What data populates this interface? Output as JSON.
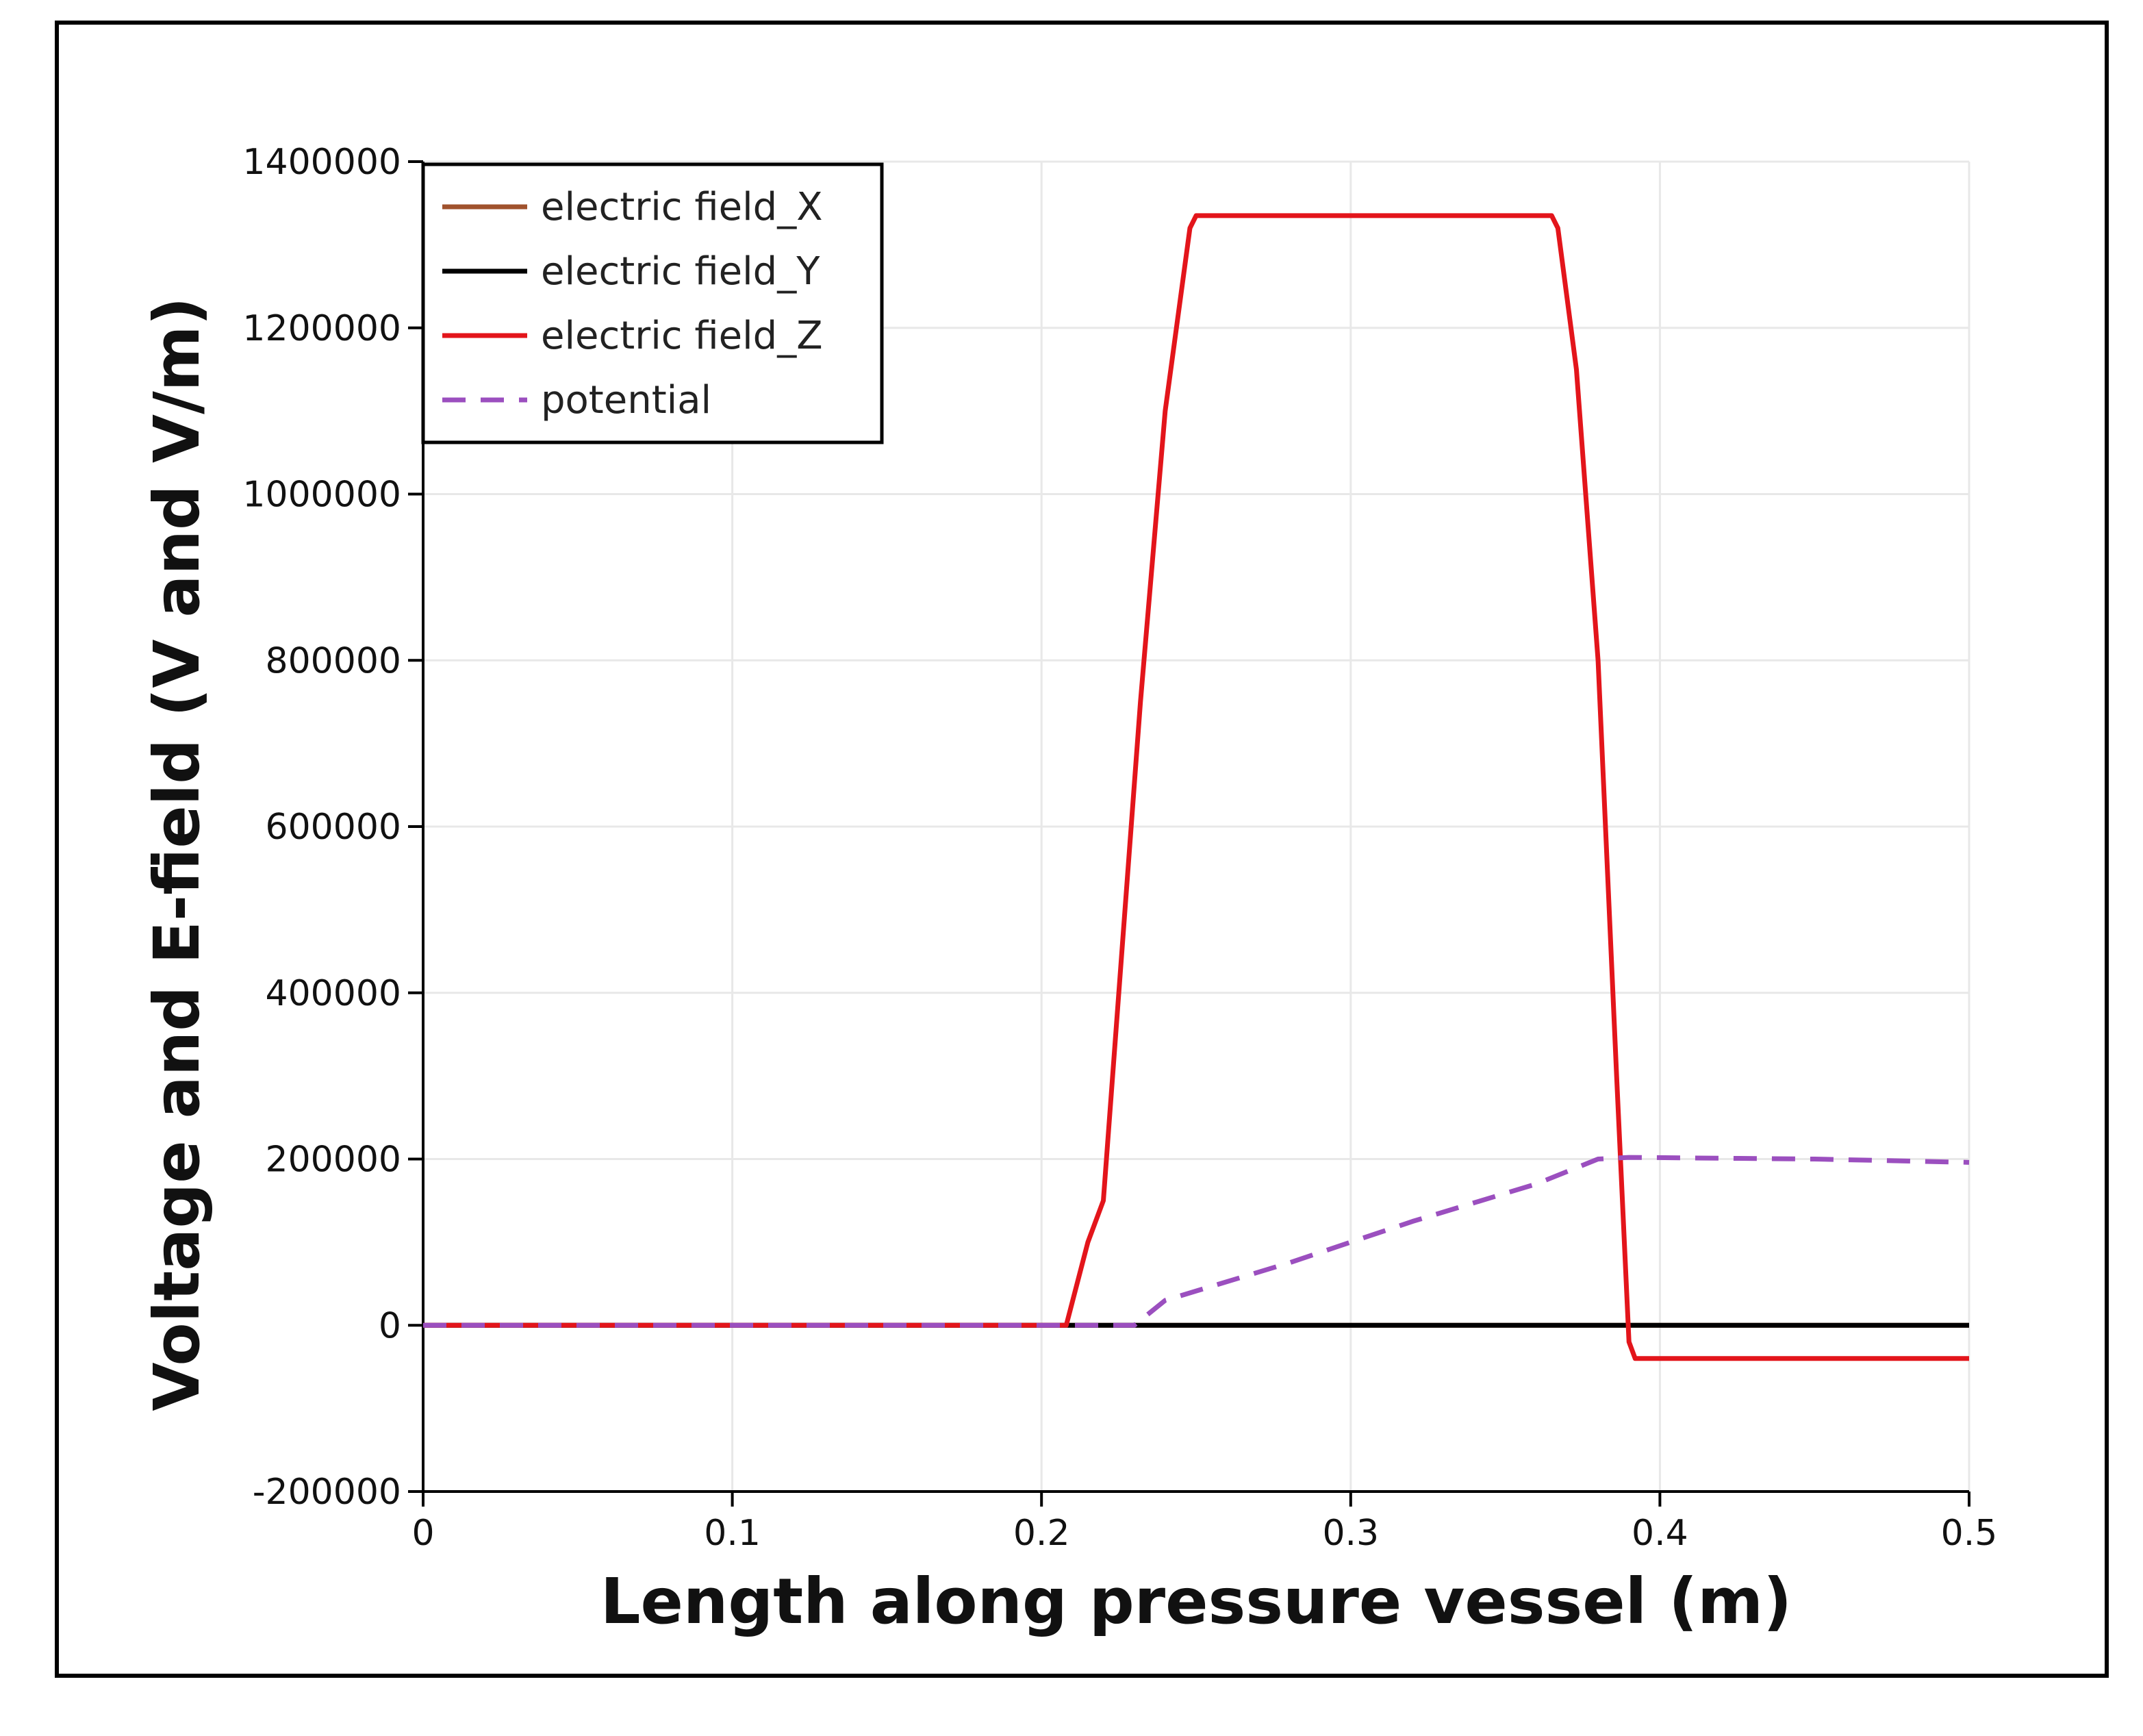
{
  "chart_data": {
    "type": "line",
    "title": "",
    "xlabel": "Length along pressure vessel (m)",
    "ylabel": "Voltage and E-field (V and V/m)",
    "xlim": [
      0,
      0.5
    ],
    "ylim": [
      -200000,
      1400000
    ],
    "x_ticks": [
      0,
      0.1,
      0.2,
      0.3,
      0.4,
      0.5
    ],
    "x_tick_labels": [
      "0",
      "0.1",
      "0.2",
      "0.3",
      "0.4",
      "0.5"
    ],
    "y_ticks": [
      -200000,
      0,
      200000,
      400000,
      600000,
      800000,
      1000000,
      1200000,
      1400000
    ],
    "y_tick_labels": [
      "-200000",
      "0",
      "200000",
      "400000",
      "600000",
      "800000",
      "1000000",
      "1200000",
      "1400000"
    ],
    "grid": true,
    "legend_position": "top-left",
    "series": [
      {
        "name": "electric field_X",
        "color": "#a0522d",
        "dash": "solid",
        "x": [
          0,
          0.5
        ],
        "y": [
          0,
          0
        ]
      },
      {
        "name": "electric field_Y",
        "color": "#000000",
        "dash": "solid",
        "x": [
          0,
          0.5
        ],
        "y": [
          0,
          0
        ]
      },
      {
        "name": "electric field_Z",
        "color": "#e3151b",
        "dash": "solid",
        "x": [
          0,
          0.208,
          0.215,
          0.22,
          0.232,
          0.24,
          0.248,
          0.25,
          0.365,
          0.367,
          0.373,
          0.38,
          0.386,
          0.39,
          0.392,
          0.5
        ],
        "y": [
          0,
          0,
          100000,
          150000,
          750000,
          1100000,
          1320000,
          1335000,
          1335000,
          1320000,
          1150000,
          800000,
          300000,
          -20000,
          -40000,
          -40000
        ]
      },
      {
        "name": "potential",
        "color": "#9b4fbf",
        "dash": "dashed",
        "x": [
          0,
          0.23,
          0.24,
          0.28,
          0.32,
          0.36,
          0.38,
          0.39,
          0.45,
          0.5
        ],
        "y": [
          0,
          0,
          30000,
          75000,
          125000,
          170000,
          200000,
          202000,
          200000,
          196000
        ]
      }
    ]
  }
}
